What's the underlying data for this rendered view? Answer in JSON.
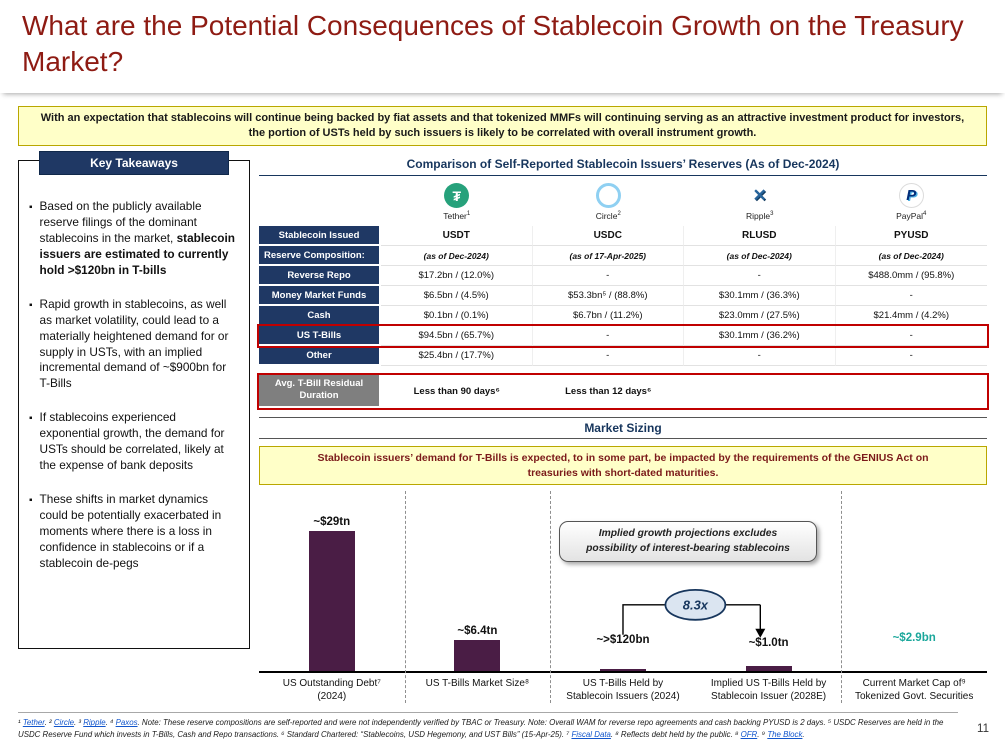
{
  "slide": {
    "title": "What are the Potential Consequences of Stablecoin Growth on the Treasury Market?",
    "page_number": "11"
  },
  "colors": {
    "title": "#8E1B13",
    "navy": "#1F3864",
    "highlight_border": "#C00000",
    "banner_bg": "#FFFFC8",
    "bar": "#4A1D45",
    "teal": "#1BA79B"
  },
  "banners": {
    "top": "With an expectation that stablecoins will continue being backed by fiat assets and that tokenized MMFs will continuing serving as an attractive investment product for investors, the portion of USTs held by such issuers is likely to be correlated with overall instrument growth.",
    "genius": "Stablecoin issuers’ demand for T-Bills is expected, to in some part, be impacted by the requirements of the GENIUS Act on treasuries with short-dated maturities."
  },
  "takeaways": {
    "header": "Key Takeaways",
    "items": [
      {
        "segments": [
          {
            "text": "Based on the publicly available reserve filings of the dominant stablecoins in the market, "
          },
          {
            "text": "stablecoin issuers are estimated to currently hold >$120bn in T-bills",
            "bold": true
          }
        ]
      },
      {
        "segments": [
          {
            "text": "Rapid growth in stablecoins, as well as market volatility, could lead to a materially heightened demand for or supply in USTs, with an implied incremental demand of ~$900bn for T-Bills"
          }
        ]
      },
      {
        "segments": [
          {
            "text": "If stablecoins experienced exponential growth, the demand for USTs should be correlated, likely at the expense of bank deposits"
          }
        ]
      },
      {
        "segments": [
          {
            "text": "These shifts in market dynamics could be potentially exacerbated in moments where there is a loss in confidence in stablecoins or if a stablecoin de-pegs"
          }
        ]
      }
    ]
  },
  "reserves_table": {
    "title": "Comparison of Self-Reported Stablecoin Issuers’ Reserves (As of Dec-2024)",
    "issuers": [
      {
        "name": "Tether",
        "sup": "1",
        "icon": "tether-icon",
        "icon_class": "tether",
        "glyph": "₮",
        "ticker": "USDT",
        "as_of": "(as of Dec-2024)"
      },
      {
        "name": "Circle",
        "sup": "2",
        "icon": "circle-icon",
        "icon_class": "circle",
        "glyph": "",
        "ticker": "USDC",
        "as_of": "(as of 17-Apr-2025)"
      },
      {
        "name": "Ripple",
        "sup": "3",
        "icon": "ripple-icon",
        "icon_class": "ripple",
        "glyph": "✕",
        "ticker": "RLUSD",
        "as_of": "(as of Dec-2024)"
      },
      {
        "name": "PayPal",
        "sup": "4",
        "icon": "paypal-icon",
        "icon_class": "paypal",
        "glyph": "P",
        "ticker": "PYUSD",
        "as_of": "(as of Dec-2024)"
      }
    ],
    "row_header_issued": "Stablecoin Issued",
    "row_header_composition": "Reserve Composition:",
    "rows": [
      {
        "label": "Reverse Repo",
        "values": [
          "$17.2bn / (12.0%)",
          "-",
          "-",
          "$488.0mm / (95.8%)"
        ],
        "highlight": false
      },
      {
        "label": "Money Market Funds",
        "values": [
          "$6.5bn / (4.5%)",
          "$53.3bn⁵ / (88.8%)",
          "$30.1mm / (36.3%)",
          "-"
        ],
        "highlight": false
      },
      {
        "label": "Cash",
        "values": [
          "$0.1bn / (0.1%)",
          "$6.7bn / (11.2%)",
          "$23.0mm / (27.5%)",
          "$21.4mm / (4.2%)"
        ],
        "highlight": false
      },
      {
        "label": "US T-Bills",
        "values": [
          "$94.5bn / (65.7%)",
          "-",
          "$30.1mm / (36.2%)",
          "-"
        ],
        "highlight": true
      },
      {
        "label": "Other",
        "values": [
          "$25.4bn / (17.7%)",
          "-",
          "-",
          "-"
        ],
        "highlight": false
      }
    ],
    "duration_row": {
      "label": "Avg. T-Bill Residual Duration",
      "values": [
        "Less than 90 days⁶",
        "Less than 12 days⁶",
        "",
        ""
      ],
      "highlight": true
    }
  },
  "market_sizing": {
    "header": "Market Sizing",
    "callout": "Implied growth projections excludes possibility of interest-bearing stablecoins",
    "multiplier": "8.3x"
  },
  "chart_data": {
    "type": "bar",
    "title": "Market Sizing",
    "categories": [
      "US Outstanding Debt⁷ (2024)",
      "US T-Bills Market Size⁸",
      "US T-Bills Held by Stablecoin Issuers (2024)",
      "Implied US T-Bills Held by Stablecoin Issuer (2028E)",
      "Current Market Cap of⁹ Tokenized Govt. Securities"
    ],
    "values_usd_tn": [
      29,
      6.4,
      0.12,
      1.0,
      0.0029
    ],
    "bar_labels": [
      "~$29tn",
      "~$6.4tn",
      "~>$120bn",
      "~$1.0tn",
      "~$2.9bn"
    ],
    "bar_label_colors": [
      "#111111",
      "#111111",
      "#111111",
      "#111111",
      "#1BA79B"
    ],
    "has_bar": [
      true,
      true,
      true,
      true,
      false
    ],
    "bar_color": "#4A1D45",
    "ylim_usd_tn": [
      0,
      30
    ],
    "grid": false,
    "legend": "none",
    "annotation_multiplier": "8.3x",
    "annotation_callout": "Implied growth projections excludes possibility of interest-bearing stablecoins"
  },
  "footnotes": {
    "segments": [
      {
        "text": "¹ "
      },
      {
        "text": "Tether",
        "link": true
      },
      {
        "text": ". ² "
      },
      {
        "text": "Circle",
        "link": true
      },
      {
        "text": ". ³ "
      },
      {
        "text": "Ripple",
        "link": true
      },
      {
        "text": ". ⁴ "
      },
      {
        "text": "Paxos",
        "link": true
      },
      {
        "text": ". Note: These reserve compositions are self-reported and were not independently verified by TBAC or Treasury. Note: Overall WAM for reverse repo agreements and cash backing PYUSD is 2 days. ⁵ USDC Reserves are held in the USDC Reserve Fund which invests in T-Bills, Cash and Repo transactions. ⁶ Standard Chartered: “Stablecoins, USD Hegemony, and UST Bills” (15-Apr-25). ⁷ "
      },
      {
        "text": "Fiscal Data",
        "link": true
      },
      {
        "text": ". ⁸ Reflects debt held by the public. ⁸ "
      },
      {
        "text": "OFR",
        "link": true
      },
      {
        "text": ". ⁹ "
      },
      {
        "text": "The Block",
        "link": true
      },
      {
        "text": "."
      }
    ]
  }
}
